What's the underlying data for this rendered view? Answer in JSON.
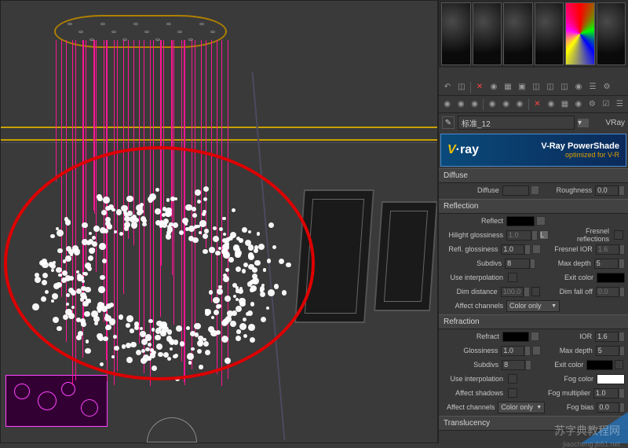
{
  "viewport": {
    "strand_color": "#ff1493",
    "ceiling_color": "#b08000",
    "circle_color": "#d00000",
    "ball_color": "#ffffff"
  },
  "material_name": "标准_12",
  "material_type": "VRay",
  "toolbars": {
    "row1_icons": [
      "↶",
      "☒",
      "✕",
      "⬤",
      "▦",
      "▣",
      "⬛",
      "⬛",
      "⬛",
      "◉",
      "☰",
      "⚙"
    ],
    "row2_icons": [
      "⬤",
      "⬤",
      "⬤",
      "⬤",
      "⬤",
      "⬤",
      "✕",
      "⬤",
      "▦",
      "◉",
      "⚙",
      "☑",
      "☰"
    ]
  },
  "vray": {
    "logo": "V·ray",
    "title": "V-Ray PowerShade",
    "subtitle": "optimized for V-R"
  },
  "sections": {
    "diffuse": {
      "header": "Diffuse",
      "diffuse_label": "Diffuse",
      "roughness_label": "Roughness",
      "roughness_value": "0.0"
    },
    "reflection": {
      "header": "Reflection",
      "reflect_label": "Reflect",
      "hilight_label": "Hilight glossiness",
      "hilight_value": "1.0",
      "fresnel_label": "Fresnel reflections",
      "refl_gloss_label": "Refl. glossiness",
      "refl_gloss_value": "1.0",
      "fresnel_ior_label": "Fresnel IOR",
      "fresnel_ior_value": "1.6",
      "subdivs_label": "Subdivs",
      "subdivs_value": "8",
      "max_depth_label": "Max depth",
      "max_depth_value": "5",
      "use_interp_label": "Use interpolation",
      "exit_color_label": "Exit color",
      "dim_distance_label": "Dim distance",
      "dim_distance_value": "100.0",
      "dim_falloff_label": "Dim fall off",
      "dim_falloff_value": "0.0",
      "affect_channels_label": "Affect channels",
      "affect_channels_value": "Color only"
    },
    "refraction": {
      "header": "Refraction",
      "refract_label": "Refract",
      "ior_label": "IOR",
      "ior_value": "1.6",
      "glossiness_label": "Glossiness",
      "glossiness_value": "1.0",
      "max_depth_label": "Max depth",
      "max_depth_value": "5",
      "subdivs_label": "Subdivs",
      "subdivs_value": "8",
      "exit_color_label": "Exit color",
      "use_interp_label": "Use interpolation",
      "fog_color_label": "Fog color",
      "affect_shadows_label": "Affect shadows",
      "fog_multiplier_label": "Fog multiplier",
      "fog_multiplier_value": "1.0",
      "affect_channels_label": "Affect channels",
      "affect_channels_value": "Color only",
      "fog_bias_label": "Fog bias",
      "fog_bias_value": "0.0"
    },
    "translucency": {
      "header": "Translucency"
    }
  },
  "watermark": "苏字典教程网",
  "watermark_sub": "jiaocheng.jb51.net"
}
